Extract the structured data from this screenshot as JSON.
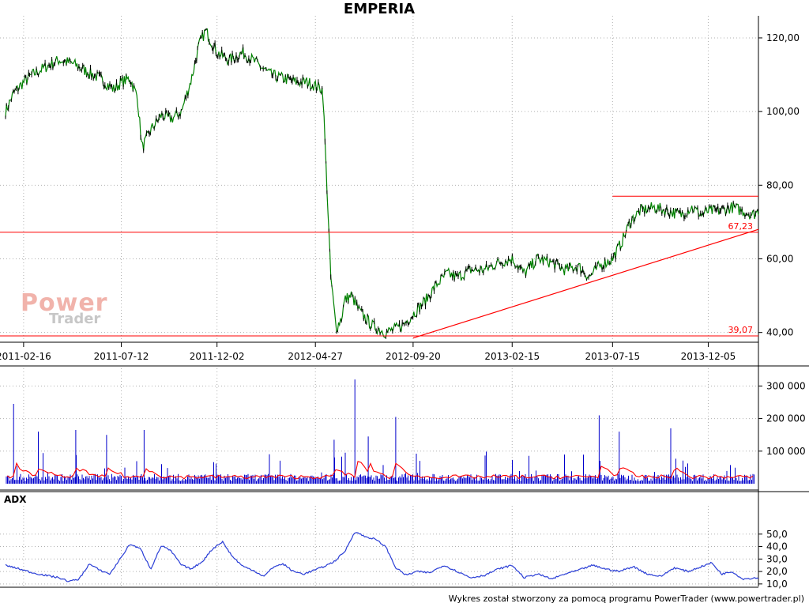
{
  "title": "EMPERIA",
  "footer": "Wykres został stworzony za pomocą programu PowerTrader (www.powertrader.pl)",
  "watermark": {
    "line1": "Power",
    "line2": "Trader"
  },
  "colors": {
    "price": "#000000",
    "price_up": "#008000",
    "support": "#ff0000",
    "volume": "#0000cc",
    "volume_ma": "#ff0000",
    "adx": "#2a3ed6",
    "grid": "#b0b0b0"
  },
  "chart_data": [
    {
      "type": "line",
      "name": "price",
      "ylim": [
        38,
        126
      ],
      "yticks": [
        40,
        60,
        80,
        100,
        120
      ],
      "ytick_labels": [
        "40,00",
        "60,00",
        "80,00",
        "100,00",
        "120,00"
      ],
      "x_range": [
        "2011-01-20",
        "2014-02-18"
      ],
      "xticks": [
        "2011-02-16",
        "2011-07-12",
        "2011-12-02",
        "2012-04-27",
        "2012-09-20",
        "2013-02-15",
        "2013-07-15",
        "2013-12-05"
      ],
      "grid": true,
      "series": {
        "dates": [
          "2011-01-20",
          "2011-02-01",
          "2011-02-16",
          "2011-03-01",
          "2011-03-20",
          "2011-04-10",
          "2011-05-01",
          "2011-05-20",
          "2011-06-10",
          "2011-07-01",
          "2011-07-12",
          "2011-07-25",
          "2011-08-05",
          "2011-08-12",
          "2011-08-25",
          "2011-09-10",
          "2011-09-25",
          "2011-10-10",
          "2011-10-25",
          "2011-11-05",
          "2011-11-15",
          "2011-12-02",
          "2011-12-20",
          "2012-01-10",
          "2012-01-31",
          "2012-02-20",
          "2012-03-10",
          "2012-03-30",
          "2012-04-15",
          "2012-04-27",
          "2012-05-08",
          "2012-05-20",
          "2012-05-28",
          "2012-06-05",
          "2012-06-10",
          "2012-06-20",
          "2012-07-01",
          "2012-07-20",
          "2012-08-10",
          "2012-08-25",
          "2012-09-05",
          "2012-09-20",
          "2012-10-10",
          "2012-10-25",
          "2012-11-10",
          "2012-11-25",
          "2012-12-15",
          "2013-01-05",
          "2013-01-25",
          "2013-02-15",
          "2013-03-05",
          "2013-03-25",
          "2013-04-15",
          "2013-05-05",
          "2013-05-25",
          "2013-06-10",
          "2013-06-25",
          "2013-07-15",
          "2013-07-30",
          "2013-08-10",
          "2013-08-25",
          "2013-09-15",
          "2013-10-05",
          "2013-10-25",
          "2013-11-10",
          "2013-11-25",
          "2013-12-05",
          "2013-12-20",
          "2014-01-10",
          "2014-01-25",
          "2014-02-10",
          "2014-02-18"
        ],
        "values": [
          100,
          105,
          108,
          110,
          112,
          114,
          113,
          111,
          109,
          106,
          108,
          109,
          104,
          90,
          95,
          99,
          98,
          100,
          109,
          118,
          122,
          116,
          114,
          116,
          113,
          110,
          109,
          108,
          108,
          107,
          106,
          55,
          41,
          44,
          49,
          50,
          46,
          42,
          40,
          41,
          42,
          45,
          49,
          53,
          56,
          55,
          57,
          57,
          59,
          60,
          56,
          60,
          59,
          57,
          58,
          55,
          58,
          60,
          65,
          70,
          73,
          74,
          73,
          72,
          74,
          72,
          73,
          73,
          74,
          73,
          72,
          73
        ]
      },
      "lines": [
        {
          "kind": "support",
          "value": 67.23,
          "label": "67,23"
        },
        {
          "kind": "support",
          "value": 39.07,
          "label": "39,07"
        },
        {
          "kind": "resistance",
          "value": 77,
          "from": "2013-07-15",
          "to": "2014-02-18"
        },
        {
          "kind": "trend",
          "from": [
            "2012-09-20",
            38.5
          ],
          "to": [
            "2014-02-18",
            68
          ]
        }
      ]
    },
    {
      "type": "bar",
      "name": "volume",
      "ylim": [
        0,
        330000
      ],
      "yticks": [
        100000,
        200000,
        300000
      ],
      "ytick_labels": [
        "100 000",
        "200 000",
        "300 000"
      ],
      "grid": true,
      "peaks": [
        {
          "date": "2011-02-01",
          "value": 245000
        },
        {
          "date": "2011-03-10",
          "value": 160000
        },
        {
          "date": "2011-05-05",
          "value": 165000
        },
        {
          "date": "2011-06-20",
          "value": 150000
        },
        {
          "date": "2011-08-15",
          "value": 165000
        },
        {
          "date": "2012-05-25",
          "value": 135000
        },
        {
          "date": "2012-06-25",
          "value": 320000
        },
        {
          "date": "2012-07-15",
          "value": 145000
        },
        {
          "date": "2012-08-25",
          "value": 205000
        },
        {
          "date": "2013-06-25",
          "value": 210000
        },
        {
          "date": "2013-07-25",
          "value": 160000
        },
        {
          "date": "2013-10-10",
          "value": 170000
        }
      ]
    },
    {
      "type": "line",
      "name": "ADX",
      "ylim": [
        8,
        60
      ],
      "yticks": [
        10,
        20,
        30,
        40,
        50
      ],
      "ytick_labels": [
        "10,0",
        "20,0",
        "30,0",
        "40,0",
        "50,0"
      ],
      "grid": true,
      "series": {
        "dates": [
          "2011-01-20",
          "2011-02-10",
          "2011-03-01",
          "2011-03-20",
          "2011-04-10",
          "2011-04-25",
          "2011-05-10",
          "2011-05-25",
          "2011-06-10",
          "2011-06-25",
          "2011-07-10",
          "2011-07-25",
          "2011-08-10",
          "2011-08-25",
          "2011-09-10",
          "2011-09-25",
          "2011-10-10",
          "2011-10-25",
          "2011-11-10",
          "2011-11-25",
          "2011-12-10",
          "2011-12-25",
          "2012-01-10",
          "2012-01-25",
          "2012-02-10",
          "2012-02-25",
          "2012-03-10",
          "2012-03-25",
          "2012-04-10",
          "2012-04-25",
          "2012-05-10",
          "2012-05-25",
          "2012-06-10",
          "2012-06-25",
          "2012-07-10",
          "2012-07-25",
          "2012-08-10",
          "2012-08-25",
          "2012-09-10",
          "2012-09-25",
          "2012-10-15",
          "2012-11-05",
          "2012-11-25",
          "2012-12-15",
          "2013-01-05",
          "2013-01-25",
          "2013-02-15",
          "2013-03-05",
          "2013-03-25",
          "2013-04-15",
          "2013-05-05",
          "2013-05-25",
          "2013-06-15",
          "2013-07-05",
          "2013-07-25",
          "2013-08-15",
          "2013-09-05",
          "2013-09-25",
          "2013-10-15",
          "2013-11-05",
          "2013-11-25",
          "2013-12-10",
          "2013-12-25",
          "2014-01-10",
          "2014-01-25",
          "2014-02-18"
        ],
        "values": [
          25,
          22,
          19,
          17,
          15,
          12,
          14,
          26,
          21,
          18,
          30,
          42,
          38,
          22,
          41,
          36,
          25,
          22,
          28,
          38,
          44,
          32,
          24,
          21,
          16,
          24,
          26,
          20,
          18,
          21,
          24,
          28,
          36,
          52,
          48,
          46,
          40,
          23,
          17,
          20,
          19,
          25,
          20,
          15,
          17,
          22,
          25,
          15,
          18,
          14,
          18,
          21,
          25,
          22,
          20,
          24,
          18,
          16,
          23,
          20,
          24,
          27,
          18,
          20,
          14,
          15
        ]
      }
    }
  ]
}
